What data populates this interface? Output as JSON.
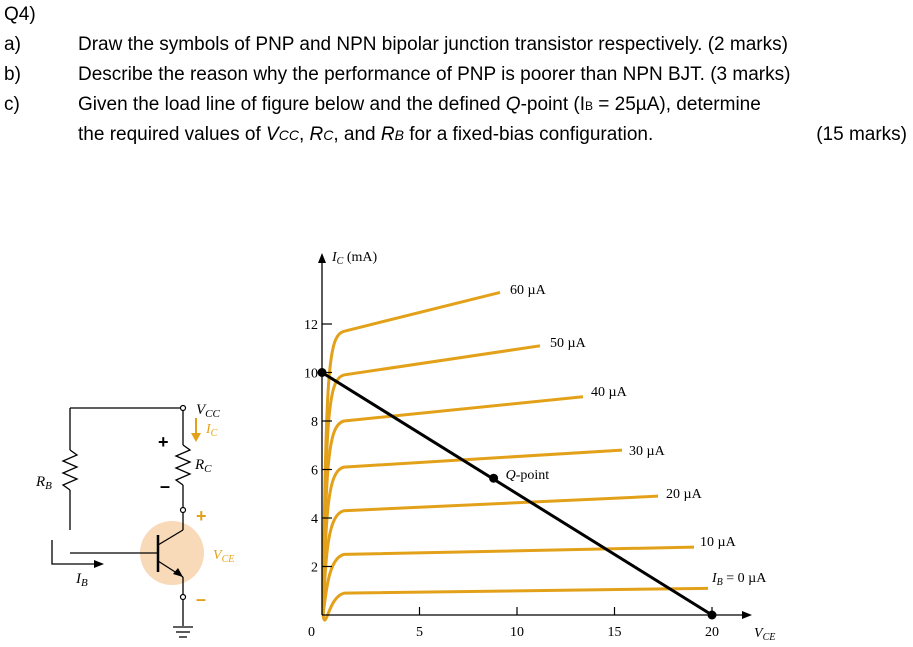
{
  "heading": "Q4)",
  "questions": [
    {
      "label": "a)",
      "text": "Draw the symbols of PNP and NPN bipolar junction transistor respectively. (2 marks)"
    },
    {
      "label": "b)",
      "text": "Describe the reason why the performance of PNP is poorer than NPN BJT.  (3 marks)"
    },
    {
      "label": "c)",
      "text_line1_a": "Given the load line of figure below and the defined ",
      "text_line1_q": "Q",
      "text_line1_b": "-point (I",
      "text_line1_sub": "B",
      "text_line1_c": " = 25µA), determine",
      "text_line2_a": "the required values of ",
      "vcc": "V",
      "vcc_sub": "CC",
      "sep1": ", ",
      "rc": "R",
      "rc_sub": "C",
      "sep2": ", and ",
      "rb": "R",
      "rb_sub": "B",
      "text_line2_b": " for a fixed-bias configuration.",
      "marks": "(15 marks)"
    }
  ],
  "circuit": {
    "vcc_label": "V",
    "vcc_sub": "CC",
    "ic_label": "I",
    "ic_sub": "C",
    "rc_label": "R",
    "rc_sub": "C",
    "rb_label": "R",
    "rb_sub": "B",
    "ib_label": "I",
    "ib_sub": "B",
    "vce_label": "V",
    "vce_sub": "CE",
    "plus_top": "+",
    "minus_top": "–",
    "plus_ce": "+",
    "minus_ce": "–",
    "colors": {
      "transistor_fill": "#f8d9b8",
      "arrow": "#e3a11a"
    }
  },
  "chart_data": {
    "type": "line",
    "ylabel": "I",
    "ylabel_sub": "C",
    "ylabel_unit": " (mA)",
    "xlabel": "V",
    "xlabel_sub": "CE",
    "x_ticks": [
      "0",
      "5",
      "10",
      "15",
      "20"
    ],
    "x_tick_values": [
      0,
      5,
      10,
      15,
      20
    ],
    "y_ticks": [
      "2",
      "4",
      "6",
      "8",
      "10",
      "12"
    ],
    "y_tick_values": [
      2,
      4,
      6,
      8,
      10,
      12
    ],
    "xlim": [
      0,
      21
    ],
    "ylim": [
      0,
      14
    ],
    "curve_color": "#e3a11a",
    "series": [
      {
        "name": "60 µA",
        "start": 11.7,
        "end": 13.3
      },
      {
        "name": "50 µA",
        "start": 9.9,
        "end": 11.1
      },
      {
        "name": "40 µA",
        "start": 8.0,
        "end": 9.0
      },
      {
        "name": "30 µA",
        "start": 6.1,
        "end": 6.8
      },
      {
        "name": "20 µA",
        "start": 4.3,
        "end": 4.9
      },
      {
        "name": "10 µA",
        "start": 2.5,
        "end": 2.8
      },
      {
        "name": "I_B = 0 µA",
        "start": 0.9,
        "end": 1.1
      }
    ],
    "series_labels": {
      "ib0_prefix": "I",
      "ib0_sub": "B",
      "ib0_suffix": " = 0 µA"
    },
    "load_line": {
      "x": [
        0,
        20
      ],
      "y": [
        10,
        0
      ]
    },
    "q_point": {
      "label": "Q-point",
      "x": 8.8,
      "y": 5.6
    }
  }
}
